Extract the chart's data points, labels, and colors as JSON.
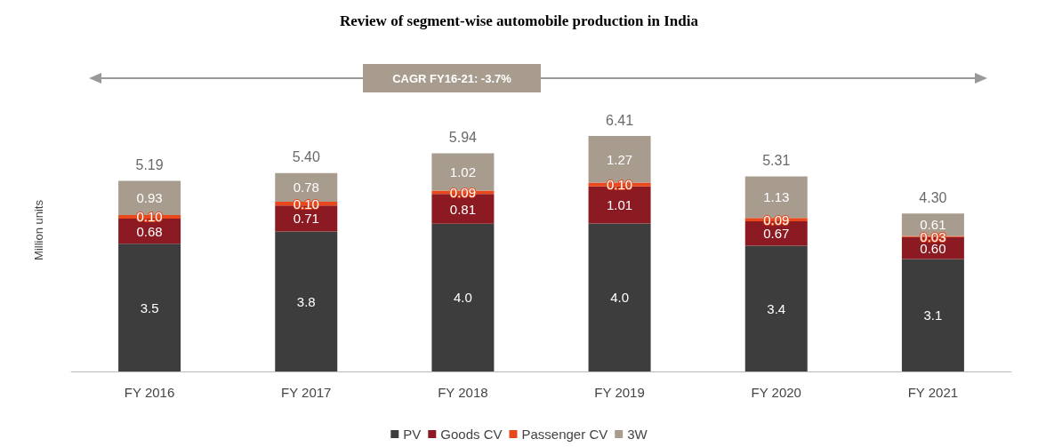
{
  "chart_data": {
    "type": "bar",
    "stacked": true,
    "title": "Review of segment-wise automobile production in India",
    "ylabel": "Million units",
    "categories": [
      "FY 2016",
      "FY 2017",
      "FY 2018",
      "FY 2019",
      "FY 2020",
      "FY 2021"
    ],
    "series": [
      {
        "name": "PV",
        "color": "#3d3d3d",
        "values": [
          3.48,
          3.81,
          4.02,
          4.03,
          3.42,
          3.06
        ],
        "value_labels": [
          "3.5",
          "3.8",
          "4.0",
          "4.0",
          "3.4",
          "3.1"
        ]
      },
      {
        "name": "Goods CV",
        "color": "#8b1a22",
        "values": [
          0.68,
          0.71,
          0.81,
          1.01,
          0.67,
          0.6
        ],
        "value_labels": [
          "0.68",
          "0.71",
          "0.81",
          "1.01",
          "0.67",
          "0.60"
        ]
      },
      {
        "name": "Passenger CV",
        "color": "#e8481c",
        "values": [
          0.1,
          0.1,
          0.09,
          0.1,
          0.09,
          0.03
        ],
        "value_labels": [
          "0.10",
          "0.10",
          "0.09",
          "0.10",
          "0.09",
          "0.03"
        ]
      },
      {
        "name": "3W",
        "color": "#a89c8f",
        "values": [
          0.93,
          0.78,
          1.02,
          1.27,
          1.13,
          0.61
        ],
        "value_labels": [
          "0.93",
          "0.78",
          "1.02",
          "1.27",
          "1.13",
          "0.61"
        ]
      }
    ],
    "totals": [
      "5.19",
      "5.40",
      "5.94",
      "6.41",
      "5.31",
      "4.30"
    ],
    "annotations": [
      "CAGR FY16-21: -3.7%"
    ],
    "legend": "bottom"
  }
}
